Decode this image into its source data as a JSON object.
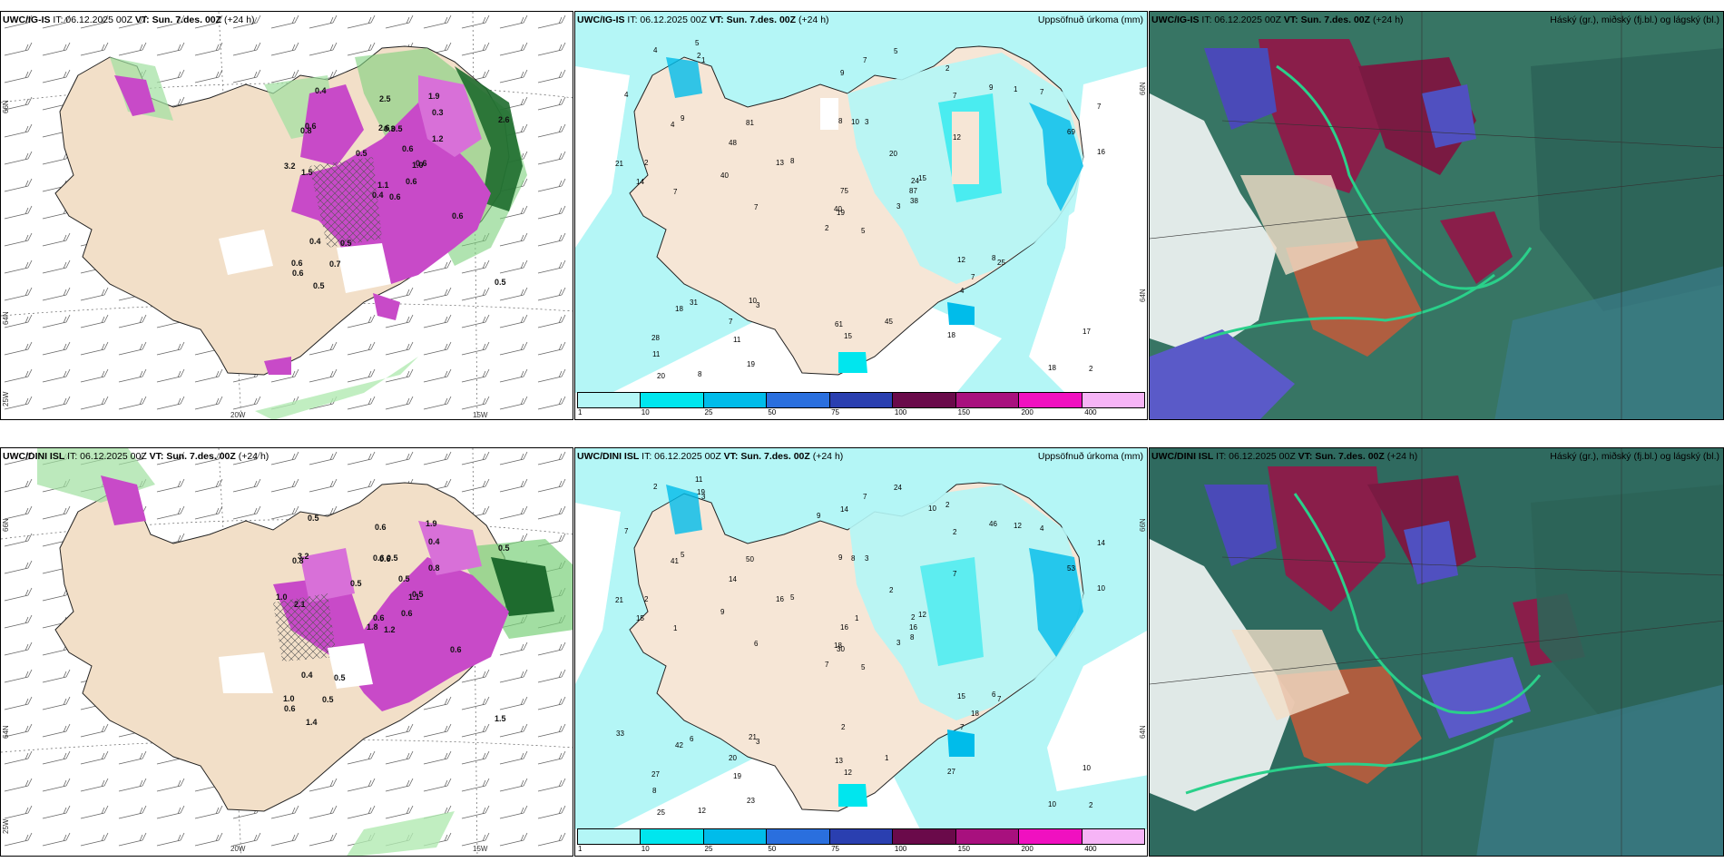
{
  "panels": [
    {
      "model": "UWC/IG-IS",
      "it": "IT: 06.12.2025 00Z",
      "vt_label": "VT:",
      "vt": "Sun. 7.des. 00Z",
      "lead": "(+24 h)",
      "title_right": ""
    },
    {
      "model": "UWC/IG-IS",
      "it": "IT: 06.12.2025 00Z",
      "vt_label": "VT:",
      "vt": "Sun. 7.des. 00Z",
      "lead": "(+24 h)",
      "title_right": "Uppsöfnuð úrkoma (mm)"
    },
    {
      "model": "UWC/IG-IS",
      "it": "IT: 06.12.2025 00Z",
      "vt_label": "VT:",
      "vt": "Sun. 7.des. 00Z",
      "lead": "(+24 h)",
      "title_right": "Háský (gr.), miðský (fj.bl.) og lágský (bl.)"
    },
    {
      "model": "UWC/DINI ISL",
      "it": "IT: 06.12.2025 00Z",
      "vt_label": "VT:",
      "vt": "Sun. 7.des. 00Z",
      "lead": "(+24 h)",
      "title_right": ""
    },
    {
      "model": "UWC/DINI ISL",
      "it": "IT: 06.12.2025 00Z",
      "vt_label": "VT:",
      "vt": "Sun. 7.des. 00Z",
      "lead": "(+24 h)",
      "title_right": "Uppsöfnuð úrkoma (mm)"
    },
    {
      "model": "UWC/DINI ISL",
      "it": "IT: 06.12.2025 00Z",
      "vt_label": "VT:",
      "vt": "Sun. 7.des. 00Z",
      "lead": "(+24 h)",
      "title_right": "Háský (gr.), miðský (fj.bl.) og lágský (bl.)"
    }
  ],
  "axes": {
    "lat_66": "66N",
    "lat_64": "64N",
    "lon_25": "25W",
    "lon_20": "20W",
    "lon_15": "15W"
  },
  "colorbar": {
    "labels": [
      "1",
      "10",
      "25",
      "50",
      "75",
      "100",
      "150",
      "200",
      "400"
    ],
    "colors": [
      "#b4f6f6",
      "#00e6ee",
      "#00bcea",
      "#2a6fde",
      "#2a3fb0",
      "#6a0a4a",
      "#a8107e",
      "#f010c0",
      "#f6b4f6"
    ]
  },
  "snow_numbers_top": [
    "0.6",
    "0.8",
    "1.1",
    "0.6",
    "1.0",
    "0.5",
    "1.9",
    "0.5",
    "0.3",
    "0.6",
    "0.4",
    "0.5",
    "1.5",
    "2.6",
    "0.4",
    "1.2",
    "0.5",
    "2.6",
    "0.6",
    "0.4",
    "0.5",
    "0.6",
    "0.7",
    "0.3",
    "0.6",
    "0.6",
    "0.6",
    "2.5",
    "3.2"
  ],
  "snow_numbers_bottom": [
    "1.2",
    "0.8",
    "0.6",
    "1.0",
    "1.1",
    "0.5",
    "1.9",
    "0.5",
    "0.4",
    "0.6",
    "0.5",
    "1.5",
    "2.1",
    "0.5",
    "1.8",
    "0.8",
    "1.4",
    "0.6",
    "0.5",
    "0.4",
    "0.5",
    "0.6",
    "0.5",
    "0.6",
    "0.5",
    "0.6",
    "3.2",
    "0.6",
    "1.0"
  ],
  "precip_numbers_top": [
    "5",
    "4",
    "19",
    "28",
    "24",
    "3",
    "2",
    "3",
    "7",
    "3",
    "1",
    "2",
    "7",
    "7",
    "2",
    "12",
    "8",
    "8",
    "20",
    "31",
    "8",
    "11",
    "11",
    "10",
    "15",
    "25",
    "9",
    "9",
    "14",
    "12",
    "16",
    "40",
    "61",
    "75",
    "81",
    "9",
    "10",
    "18",
    "17",
    "8",
    "5",
    "13",
    "40",
    "4",
    "19",
    "21",
    "87",
    "20",
    "15",
    "38",
    "18",
    "69",
    "4",
    "7",
    "18",
    "7",
    "2",
    "4",
    "45",
    "7",
    "7",
    "7",
    "2",
    "48",
    "1",
    "5"
  ],
  "precip_numbers_bottom": [
    "5",
    "41",
    "30",
    "27",
    "2",
    "3",
    "2",
    "3",
    "2",
    "3",
    "3",
    "2",
    "1",
    "14",
    "7",
    "7",
    "12",
    "9",
    "2",
    "6",
    "5",
    "8",
    "19",
    "8",
    "12",
    "7",
    "5",
    "14",
    "15",
    "15",
    "10",
    "18",
    "13",
    "16",
    "50",
    "46",
    "21",
    "10",
    "10",
    "6",
    "24",
    "16",
    "9",
    "7",
    "23",
    "21",
    "16",
    "25",
    "12",
    "8",
    "42",
    "53",
    "7",
    "18",
    "27",
    "20",
    "19",
    "2",
    "1",
    "4",
    "7",
    "6",
    "2",
    "14",
    "12",
    "11",
    "10",
    "9",
    "1",
    "33",
    "2"
  ]
}
